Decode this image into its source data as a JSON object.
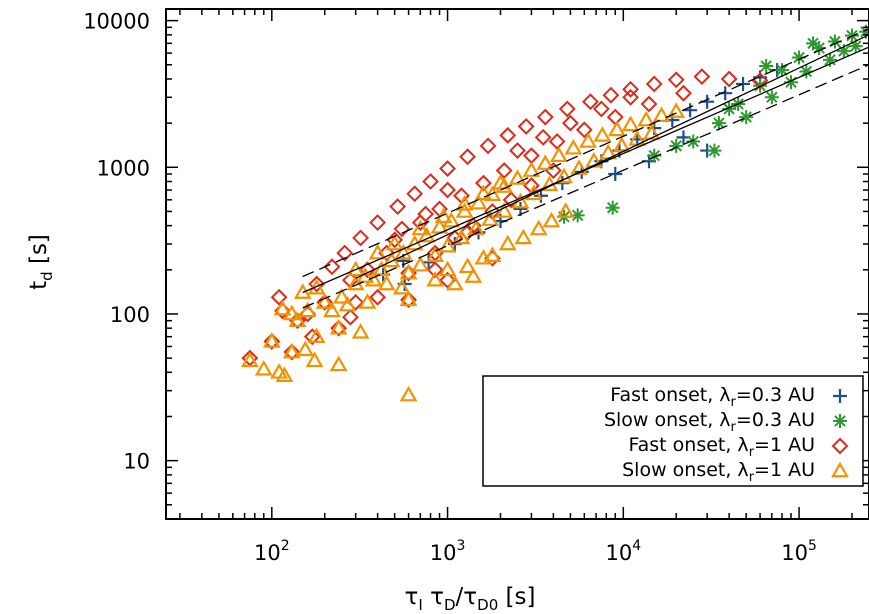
{
  "chart_data": {
    "type": "scatter",
    "title": "",
    "xlabel": {
      "main": "τ",
      "s1": "I",
      "mid": " τ",
      "s2": "D",
      "slash": "/τ",
      "s3": "D0",
      "unit": " [s]"
    },
    "ylabel": {
      "main": "t",
      "sub": "d",
      "unit": " [s]"
    },
    "x_scale": "log",
    "y_scale": "log",
    "xlim": [
      25,
      250000
    ],
    "ylim": [
      4,
      12000
    ],
    "x_ticks": [
      {
        "value": 100,
        "base": "10",
        "exp": "2"
      },
      {
        "value": 1000,
        "base": "10",
        "exp": "3"
      },
      {
        "value": 10000,
        "base": "10",
        "exp": "4"
      },
      {
        "value": 100000,
        "base": "10",
        "exp": "5"
      }
    ],
    "y_ticks": [
      {
        "value": 10,
        "label": "10"
      },
      {
        "value": 100,
        "label": "100"
      },
      {
        "value": 1000,
        "label": "1000"
      },
      {
        "value": 10000,
        "label": "10000"
      }
    ],
    "grid": false,
    "legend_position": "bottom-right",
    "colors": {
      "fast_03": "#1f4e8c",
      "slow_03": "#2e9a2e",
      "fast_1": "#dd2a1a",
      "slow_1": "#f39200"
    },
    "series": [
      {
        "name": "Fast onset, λ_r=0.3 AU",
        "legend": {
          "pre": "Fast onset, λ",
          "sub": "r",
          "post": "=0.3 AU"
        },
        "marker": "plus",
        "color": "#1f4e8c",
        "points": [
          [
            430,
            185
          ],
          [
            570,
            160
          ],
          [
            560,
            230
          ],
          [
            780,
            225
          ],
          [
            1100,
            300
          ],
          [
            1500,
            360
          ],
          [
            2000,
            430
          ],
          [
            2600,
            520
          ],
          [
            3400,
            640
          ],
          [
            4500,
            780
          ],
          [
            5800,
            930
          ],
          [
            7500,
            1100
          ],
          [
            9500,
            1300
          ],
          [
            12000,
            1550
          ],
          [
            15000,
            1850
          ],
          [
            19000,
            2100
          ],
          [
            24000,
            2450
          ],
          [
            30000,
            2800
          ],
          [
            38000,
            3200
          ],
          [
            48000,
            3700
          ],
          [
            60000,
            4100
          ],
          [
            75000,
            4600
          ],
          [
            30000,
            1300
          ],
          [
            14000,
            1100
          ],
          [
            22000,
            1600
          ],
          [
            9000,
            900
          ]
        ]
      },
      {
        "name": "Slow onset, λ_r=0.3 AU",
        "legend": {
          "pre": "Slow onset, λ",
          "sub": "r",
          "post": "=0.3 AU"
        },
        "marker": "asterisk",
        "color": "#2e9a2e",
        "points": [
          [
            8700,
            530
          ],
          [
            5500,
            470
          ],
          [
            4600,
            460
          ],
          [
            20000,
            1400
          ],
          [
            33000,
            1300
          ],
          [
            45000,
            2700
          ],
          [
            60000,
            3600
          ],
          [
            80000,
            4600
          ],
          [
            100000,
            5600
          ],
          [
            130000,
            6500
          ],
          [
            160000,
            7200
          ],
          [
            200000,
            7900
          ],
          [
            240000,
            8400
          ],
          [
            110000,
            4500
          ],
          [
            70000,
            3000
          ],
          [
            35000,
            2000
          ],
          [
            25000,
            1500
          ],
          [
            50000,
            2200
          ],
          [
            90000,
            3800
          ],
          [
            150000,
            5400
          ],
          [
            180000,
            6200
          ],
          [
            210000,
            6700
          ],
          [
            120000,
            7000
          ],
          [
            65000,
            4900
          ],
          [
            40000,
            2500
          ],
          [
            15000,
            1200
          ]
        ]
      },
      {
        "name": "Fast onset, λ_r=1 AU",
        "legend": {
          "pre": "Fast onset, λ",
          "sub": "r",
          "post": "=1 AU"
        },
        "marker": "diamond",
        "color": "#dd2a1a",
        "points": [
          [
            75,
            50
          ],
          [
            100,
            65
          ],
          [
            130,
            55
          ],
          [
            115,
            105
          ],
          [
            160,
            100
          ],
          [
            180,
            160
          ],
          [
            220,
            210
          ],
          [
            260,
            260
          ],
          [
            320,
            330
          ],
          [
            400,
            420
          ],
          [
            520,
            540
          ],
          [
            650,
            660
          ],
          [
            800,
            800
          ],
          [
            1000,
            980
          ],
          [
            1300,
            1180
          ],
          [
            1700,
            1400
          ],
          [
            2200,
            1650
          ],
          [
            2800,
            1900
          ],
          [
            3600,
            2200
          ],
          [
            4800,
            2500
          ],
          [
            6500,
            2800
          ],
          [
            8500,
            3100
          ],
          [
            11000,
            3400
          ],
          [
            15000,
            3700
          ],
          [
            20000,
            3950
          ],
          [
            28000,
            4150
          ],
          [
            40000,
            4000
          ],
          [
            60000,
            3900
          ],
          [
            500,
            320
          ],
          [
            700,
            420
          ],
          [
            900,
            520
          ],
          [
            1200,
            640
          ],
          [
            1600,
            780
          ],
          [
            2100,
            950
          ],
          [
            3000,
            1200
          ],
          [
            4200,
            1500
          ],
          [
            6000,
            1800
          ],
          [
            9000,
            2200
          ],
          [
            14000,
            2700
          ],
          [
            22000,
            3200
          ],
          [
            850,
            260
          ],
          [
            1100,
            330
          ],
          [
            1400,
            400
          ],
          [
            1800,
            500
          ],
          [
            2300,
            600
          ],
          [
            3000,
            750
          ],
          [
            4000,
            950
          ],
          [
            2500,
            1300
          ],
          [
            3500,
            1600
          ],
          [
            5000,
            2000
          ],
          [
            7500,
            2500
          ],
          [
            11000,
            3000
          ],
          [
            450,
            260
          ],
          [
            350,
            200
          ],
          [
            280,
            170
          ],
          [
            300,
            120
          ],
          [
            400,
            130
          ],
          [
            600,
            190
          ],
          [
            850,
            200
          ],
          [
            1000,
            170
          ],
          [
            1800,
            240
          ],
          [
            1300,
            360
          ],
          [
            750,
            480
          ],
          [
            1000,
            700
          ],
          [
            550,
            380
          ],
          [
            140,
            90
          ],
          [
            110,
            130
          ],
          [
            200,
            120
          ],
          [
            240,
            80
          ],
          [
            280,
            95
          ],
          [
            600,
            125
          ],
          [
            170,
            70
          ]
        ]
      },
      {
        "name": "Slow onset, λ_r=1 AU",
        "legend": {
          "pre": "Slow onset, λ",
          "sub": "r",
          "post": "=1 AU"
        },
        "marker": "triangle",
        "color": "#f39200",
        "points": [
          [
            75,
            48
          ],
          [
            90,
            42
          ],
          [
            100,
            65
          ],
          [
            110,
            40
          ],
          [
            118,
            38
          ],
          [
            130,
            55
          ],
          [
            155,
            57
          ],
          [
            175,
            48
          ],
          [
            240,
            45
          ],
          [
            320,
            75
          ],
          [
            600,
            28
          ],
          [
            115,
            108
          ],
          [
            160,
            105
          ],
          [
            200,
            120
          ],
          [
            250,
            130
          ],
          [
            300,
            160
          ],
          [
            340,
            180
          ],
          [
            380,
            170
          ],
          [
            420,
            200
          ],
          [
            480,
            230
          ],
          [
            560,
            260
          ],
          [
            650,
            300
          ],
          [
            760,
            340
          ],
          [
            900,
            390
          ],
          [
            1050,
            430
          ],
          [
            1250,
            500
          ],
          [
            1500,
            570
          ],
          [
            1800,
            650
          ],
          [
            2100,
            740
          ],
          [
            2500,
            840
          ],
          [
            3000,
            950
          ],
          [
            3600,
            1060
          ],
          [
            4300,
            1200
          ],
          [
            5200,
            1350
          ],
          [
            6300,
            1500
          ],
          [
            7600,
            1650
          ],
          [
            9200,
            1800
          ],
          [
            11000,
            1950
          ],
          [
            13500,
            2100
          ],
          [
            16500,
            2250
          ],
          [
            20000,
            2400
          ],
          [
            600,
            190
          ],
          [
            700,
            215
          ],
          [
            850,
            250
          ],
          [
            1000,
            290
          ],
          [
            1200,
            330
          ],
          [
            1450,
            380
          ],
          [
            1750,
            440
          ],
          [
            2100,
            500
          ],
          [
            2600,
            580
          ],
          [
            3100,
            660
          ],
          [
            3800,
            760
          ],
          [
            4600,
            860
          ],
          [
            5600,
            980
          ],
          [
            6800,
            1100
          ],
          [
            8200,
            1250
          ],
          [
            9800,
            1400
          ],
          [
            12000,
            1550
          ],
          [
            14500,
            1700
          ],
          [
            600,
            125
          ],
          [
            850,
            170
          ],
          [
            1000,
            200
          ],
          [
            1300,
            210
          ],
          [
            1600,
            240
          ],
          [
            1800,
            250
          ],
          [
            2200,
            300
          ],
          [
            2700,
            330
          ],
          [
            3300,
            380
          ],
          [
            3900,
            430
          ],
          [
            4700,
            500
          ],
          [
            1100,
            160
          ],
          [
            1400,
            180
          ],
          [
            550,
            150
          ],
          [
            450,
            160
          ],
          [
            350,
            120
          ],
          [
            270,
            115
          ],
          [
            220,
            105
          ],
          [
            180,
            150
          ],
          [
            150,
            140
          ],
          [
            130,
            100
          ],
          [
            240,
            80
          ],
          [
            180,
            70
          ],
          [
            140,
            90
          ],
          [
            300,
            200
          ],
          [
            400,
            260
          ],
          [
            500,
            300
          ],
          [
            700,
            380
          ],
          [
            950,
            460
          ],
          [
            1250,
            560
          ],
          [
            1600,
            660
          ],
          [
            2000,
            780
          ]
        ]
      }
    ],
    "lines": [
      {
        "style": "dashed",
        "x": [
          150,
          250000
        ],
        "y": [
          180,
          8800
        ]
      },
      {
        "style": "dashed",
        "x": [
          150,
          250000
        ],
        "y": [
          110,
          5000
        ]
      },
      {
        "style": "solid",
        "x": [
          150,
          250000
        ],
        "y": [
          140,
          6600
        ]
      },
      {
        "style": "solid",
        "x": [
          300,
          250000
        ],
        "y": [
          175,
          8000
        ]
      }
    ]
  }
}
